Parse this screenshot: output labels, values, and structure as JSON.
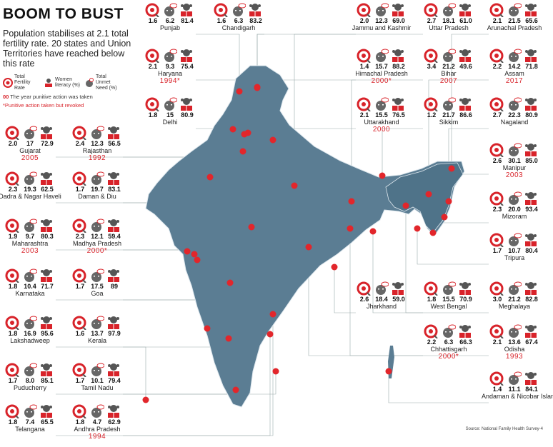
{
  "title": "BOOM TO BUST",
  "subtitle": "Population stabilises at 2.1 total fertility rate. 20 states and Union Territories have reached below this rate",
  "legend": {
    "tfr": "Total Fertility Rate",
    "literacy": "Women literacy (%)",
    "unmet": "Total Unmet Need (%)",
    "year_code": "00",
    "year_note": "The year punitive action was taken",
    "revoked_note": "*Punitive action taken but revoked"
  },
  "source": "Source: National Family Health Survey-4",
  "colors": {
    "map": "#5b7d93",
    "dot": "#e2262b",
    "accent": "#d8232a"
  },
  "states": [
    {
      "name": "Punjab",
      "tfr": "1.6",
      "unmet": "6.2",
      "literacy": "81.4",
      "year": ""
    },
    {
      "name": "Chandigarh",
      "tfr": "1.6",
      "unmet": "6.3",
      "literacy": "83.2",
      "year": ""
    },
    {
      "name": "Haryana",
      "tfr": "2.1",
      "unmet": "9.3",
      "literacy": "75.4",
      "year": "1994*"
    },
    {
      "name": "Delhi",
      "tfr": "1.8",
      "unmet": "15",
      "literacy": "80.9",
      "year": ""
    },
    {
      "name": "Gujarat",
      "tfr": "2.0",
      "unmet": "17",
      "literacy": "72.9",
      "year": "2005"
    },
    {
      "name": "Rajasthan",
      "tfr": "2.4",
      "unmet": "12.3",
      "literacy": "56.5",
      "year": "1992"
    },
    {
      "name": "Dadra & Nagar Haveli",
      "tfr": "2.3",
      "unmet": "19.3",
      "literacy": "62.5",
      "year": ""
    },
    {
      "name": "Daman & Diu",
      "tfr": "1.7",
      "unmet": "19.7",
      "literacy": "83.1",
      "year": ""
    },
    {
      "name": "Maharashtra",
      "tfr": "1.9",
      "unmet": "9.7",
      "literacy": "80.3",
      "year": "2003"
    },
    {
      "name": "Madhya Pradesh",
      "tfr": "2.3",
      "unmet": "12.1",
      "literacy": "59.4",
      "year": "2000*"
    },
    {
      "name": "Karnataka",
      "tfr": "1.8",
      "unmet": "10.4",
      "literacy": "71.7",
      "year": ""
    },
    {
      "name": "Goa",
      "tfr": "1.7",
      "unmet": "17.5",
      "literacy": "89",
      "year": ""
    },
    {
      "name": "Lakshadweep",
      "tfr": "1.8",
      "unmet": "16.9",
      "literacy": "95.6",
      "year": ""
    },
    {
      "name": "Kerala",
      "tfr": "1.6",
      "unmet": "13.7",
      "literacy": "97.9",
      "year": ""
    },
    {
      "name": "Puducherry",
      "tfr": "1.7",
      "unmet": "8.0",
      "literacy": "85.1",
      "year": ""
    },
    {
      "name": "Tamil Nadu",
      "tfr": "1.7",
      "unmet": "10.1",
      "literacy": "79.4",
      "year": ""
    },
    {
      "name": "Telangana",
      "tfr": "1.8",
      "unmet": "7.4",
      "literacy": "65.5",
      "year": ""
    },
    {
      "name": "Andhra Pradesh",
      "tfr": "1.8",
      "unmet": "4.7",
      "literacy": "62.9",
      "year": "1994"
    },
    {
      "name": "Jammu and Kashmir",
      "tfr": "2.0",
      "unmet": "12.3",
      "literacy": "69.0",
      "year": ""
    },
    {
      "name": "Uttar Pradesh",
      "tfr": "2.7",
      "unmet": "18.1",
      "literacy": "61.0",
      "year": ""
    },
    {
      "name": "Arunachal Pradesh",
      "tfr": "2.1",
      "unmet": "21.5",
      "literacy": "65.6",
      "year": ""
    },
    {
      "name": "Himachal Pradesh",
      "tfr": "1.4",
      "unmet": "15.7",
      "literacy": "88.2",
      "year": "2000*"
    },
    {
      "name": "Bihar",
      "tfr": "3.4",
      "unmet": "21.2",
      "literacy": "49.6",
      "year": "2007"
    },
    {
      "name": "Assam",
      "tfr": "2.2",
      "unmet": "14.2",
      "literacy": "71.8",
      "year": "2017"
    },
    {
      "name": "Uttarakhand",
      "tfr": "2.1",
      "unmet": "15.5",
      "literacy": "76.5",
      "year": "2000"
    },
    {
      "name": "Sikkim",
      "tfr": "1.2",
      "unmet": "21.7",
      "literacy": "86.6",
      "year": ""
    },
    {
      "name": "Nagaland",
      "tfr": "2.7",
      "unmet": "22.3",
      "literacy": "80.9",
      "year": ""
    },
    {
      "name": "Manipur",
      "tfr": "2.6",
      "unmet": "30.1",
      "literacy": "85.0",
      "year": "2003"
    },
    {
      "name": "Mizoram",
      "tfr": "2.3",
      "unmet": "20.0",
      "literacy": "93.4",
      "year": ""
    },
    {
      "name": "Tripura",
      "tfr": "1.7",
      "unmet": "10.7",
      "literacy": "80.4",
      "year": ""
    },
    {
      "name": "Jharkhand",
      "tfr": "2.6",
      "unmet": "18.4",
      "literacy": "59.0",
      "year": ""
    },
    {
      "name": "West Bengal",
      "tfr": "1.8",
      "unmet": "15.5",
      "literacy": "70.9",
      "year": ""
    },
    {
      "name": "Meghalaya",
      "tfr": "3.0",
      "unmet": "21.2",
      "literacy": "82.8",
      "year": ""
    },
    {
      "name": "Chhattisgarh",
      "tfr": "2.2",
      "unmet": "6.3",
      "literacy": "66.3",
      "year": "2000*"
    },
    {
      "name": "Odisha",
      "tfr": "2.1",
      "unmet": "13.6",
      "literacy": "67.4",
      "year": "1993"
    },
    {
      "name": "Andaman & Nicobar Islands",
      "tfr": "1.4",
      "unmet": "11.1",
      "literacy": "84.1",
      "year": ""
    }
  ]
}
